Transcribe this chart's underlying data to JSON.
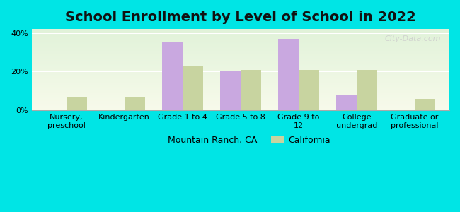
{
  "title": "School Enrollment by Level of School in 2022",
  "categories": [
    "Nursery,\npreschool",
    "Kindergarten",
    "Grade 1 to 4",
    "Grade 5 to 8",
    "Grade 9 to\n12",
    "College\nundergrad",
    "Graduate or\nprofessional"
  ],
  "mountain_ranch": [
    0,
    0,
    35,
    20,
    37,
    8,
    0
  ],
  "california": [
    7,
    7,
    23,
    21,
    21,
    21,
    6
  ],
  "bar_color_mr": "#c9a8e0",
  "bar_color_ca": "#c8d4a0",
  "background_color": "#00e5e5",
  "plot_bg_top": "#e8f4e8",
  "plot_bg_bottom": "#f5f5e8",
  "ylim": [
    0,
    42
  ],
  "yticks": [
    0,
    20,
    40
  ],
  "ytick_labels": [
    "0%",
    "20%",
    "40%"
  ],
  "legend_mr": "Mountain Ranch, CA",
  "legend_ca": "California",
  "watermark": "City-Data.com",
  "title_fontsize": 14,
  "tick_fontsize": 8
}
